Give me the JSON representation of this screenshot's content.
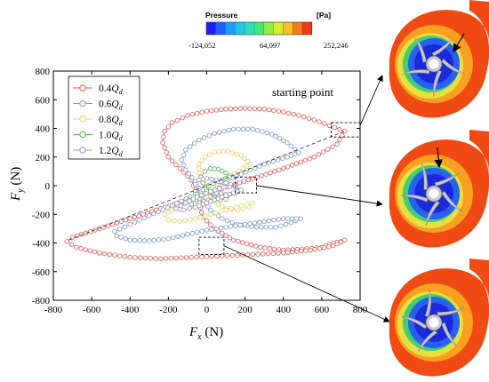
{
  "chart_data": {
    "type": "scatter",
    "title": "",
    "xlabel_main": "F",
    "xlabel_sub": "x",
    "xlabel_unit": " (N)",
    "ylabel_main": "F",
    "ylabel_sub": "y",
    "ylabel_unit": " (N)",
    "xlim": [
      -800,
      800
    ],
    "ylim": [
      -800,
      800
    ],
    "xticks": [
      -800,
      -600,
      -400,
      -200,
      0,
      200,
      400,
      600,
      800
    ],
    "yticks": [
      -800,
      -600,
      -400,
      -200,
      0,
      200,
      400,
      600,
      800
    ],
    "grid": false,
    "legend_position": "top-left",
    "series": [
      {
        "name": "0.4",
        "unit": "Q",
        "sub": "d",
        "color": "#e05a5a",
        "points": [
          [
            720,
            380
          ],
          [
            640,
            420
          ],
          [
            560,
            460
          ],
          [
            480,
            490
          ],
          [
            400,
            515
          ],
          [
            300,
            535
          ],
          [
            200,
            540
          ],
          [
            100,
            535
          ],
          [
            0,
            520
          ],
          [
            -100,
            490
          ],
          [
            -180,
            440
          ],
          [
            -220,
            380
          ],
          [
            -230,
            300
          ],
          [
            -200,
            200
          ],
          [
            -140,
            120
          ],
          [
            -80,
            40
          ],
          [
            -60,
            -40
          ],
          [
            -40,
            -120
          ],
          [
            -20,
            -220
          ],
          [
            40,
            -300
          ],
          [
            140,
            -380
          ],
          [
            280,
            -430
          ],
          [
            400,
            -450
          ],
          [
            520,
            -440
          ],
          [
            600,
            -430
          ],
          [
            660,
            -400
          ],
          [
            700,
            -390
          ],
          [
            720,
            -380
          ],
          [
            660,
            -420
          ],
          [
            540,
            -450
          ],
          [
            400,
            -470
          ],
          [
            240,
            -480
          ],
          [
            80,
            -490
          ],
          [
            -80,
            -500
          ],
          [
            -240,
            -510
          ],
          [
            -400,
            -500
          ],
          [
            -560,
            -470
          ],
          [
            -680,
            -430
          ],
          [
            -730,
            -390
          ],
          [
            -700,
            -360
          ],
          [
            -560,
            -300
          ],
          [
            -400,
            -230
          ],
          [
            -240,
            -160
          ],
          [
            -80,
            -90
          ],
          [
            80,
            -20
          ],
          [
            240,
            50
          ],
          [
            400,
            120
          ],
          [
            560,
            200
          ],
          [
            680,
            290
          ],
          [
            720,
            380
          ]
        ]
      },
      {
        "name": "0.6",
        "unit": "Q",
        "sub": "d",
        "color": "#7d9ccc",
        "points": [
          [
            480,
            230
          ],
          [
            420,
            300
          ],
          [
            340,
            360
          ],
          [
            240,
            395
          ],
          [
            140,
            395
          ],
          [
            40,
            365
          ],
          [
            -40,
            320
          ],
          [
            -110,
            250
          ],
          [
            -130,
            180
          ],
          [
            -110,
            110
          ],
          [
            -60,
            30
          ],
          [
            -40,
            -40
          ],
          [
            -20,
            -100
          ],
          [
            20,
            -170
          ],
          [
            80,
            -230
          ],
          [
            160,
            -270
          ],
          [
            260,
            -290
          ],
          [
            360,
            -290
          ],
          [
            440,
            -260
          ],
          [
            490,
            -230
          ],
          [
            400,
            -230
          ],
          [
            300,
            -250
          ],
          [
            200,
            -270
          ],
          [
            100,
            -290
          ],
          [
            0,
            -310
          ],
          [
            -100,
            -340
          ],
          [
            -200,
            -370
          ],
          [
            -300,
            -385
          ],
          [
            -400,
            -380
          ],
          [
            -470,
            -350
          ],
          [
            -480,
            -320
          ],
          [
            -400,
            -270
          ],
          [
            -300,
            -210
          ],
          [
            -180,
            -140
          ],
          [
            -60,
            -60
          ],
          [
            60,
            10
          ],
          [
            180,
            80
          ],
          [
            300,
            150
          ],
          [
            420,
            200
          ],
          [
            480,
            230
          ]
        ]
      },
      {
        "name": "0.8",
        "unit": "Q",
        "sub": "d",
        "color": "#e8d070",
        "points": [
          [
            230,
            150
          ],
          [
            180,
            210
          ],
          [
            110,
            240
          ],
          [
            40,
            235
          ],
          [
            -10,
            200
          ],
          [
            -40,
            150
          ],
          [
            -40,
            90
          ],
          [
            -20,
            40
          ],
          [
            0,
            -20
          ],
          [
            20,
            -80
          ],
          [
            60,
            -130
          ],
          [
            100,
            -160
          ],
          [
            160,
            -170
          ],
          [
            220,
            -150
          ],
          [
            240,
            -120
          ],
          [
            180,
            -140
          ],
          [
            100,
            -170
          ],
          [
            20,
            -200
          ],
          [
            -60,
            -230
          ],
          [
            -140,
            -250
          ],
          [
            -200,
            -240
          ],
          [
            -220,
            -200
          ],
          [
            -160,
            -160
          ],
          [
            -90,
            -110
          ],
          [
            -20,
            -50
          ],
          [
            50,
            10
          ],
          [
            120,
            70
          ],
          [
            190,
            120
          ],
          [
            230,
            150
          ]
        ]
      },
      {
        "name": "1.0",
        "unit": "Q",
        "sub": "d",
        "color": "#55b555",
        "points": [
          [
            120,
            60
          ],
          [
            100,
            90
          ],
          [
            60,
            115
          ],
          [
            20,
            120
          ],
          [
            -10,
            100
          ],
          [
            -30,
            60
          ],
          [
            -20,
            20
          ],
          [
            0,
            -10
          ],
          [
            20,
            -50
          ],
          [
            40,
            -80
          ],
          [
            70,
            -100
          ],
          [
            100,
            -95
          ],
          [
            110,
            -70
          ],
          [
            60,
            -80
          ],
          [
            10,
            -100
          ],
          [
            -40,
            -120
          ],
          [
            -80,
            -130
          ],
          [
            -100,
            -110
          ],
          [
            -70,
            -80
          ],
          [
            -30,
            -40
          ],
          [
            10,
            0
          ],
          [
            60,
            30
          ],
          [
            120,
            60
          ]
        ]
      },
      {
        "name": "1.2",
        "unit": "Q",
        "sub": "d",
        "color": "#9a92c2",
        "points": [
          [
            180,
            -30
          ],
          [
            150,
            0
          ],
          [
            100,
            20
          ],
          [
            50,
            40
          ],
          [
            0,
            50
          ],
          [
            -40,
            40
          ],
          [
            -60,
            10
          ],
          [
            -40,
            -20
          ],
          [
            0,
            -40
          ],
          [
            50,
            -50
          ],
          [
            100,
            -60
          ],
          [
            150,
            -55
          ],
          [
            180,
            -30
          ],
          [
            120,
            -60
          ],
          [
            60,
            -90
          ],
          [
            0,
            -120
          ],
          [
            -60,
            -150
          ],
          [
            -120,
            -170
          ],
          [
            -160,
            -160
          ],
          [
            -110,
            -120
          ],
          [
            -50,
            -80
          ],
          [
            20,
            -40
          ],
          [
            90,
            -10
          ],
          [
            150,
            -10
          ],
          [
            180,
            -30
          ]
        ]
      }
    ]
  },
  "colorbar": {
    "title": "Pressure",
    "unit": "[Pa]",
    "ticks": [
      "-124,052",
      "64,097",
      "252,246"
    ],
    "colors": [
      "#1e1ef0",
      "#1e60ff",
      "#1e9cff",
      "#20c8e8",
      "#28e0c0",
      "#40e878",
      "#90ee40",
      "#d8ec30",
      "#f8c020",
      "#f87a20",
      "#f03818"
    ]
  },
  "annotation": {
    "text": "starting point",
    "x": 720,
    "y": 380
  },
  "boxes": [
    {
      "x0": 650,
      "x1": 800,
      "y0": 340,
      "y1": 440
    },
    {
      "x0": 150,
      "x1": 260,
      "y0": -50,
      "y1": 60
    },
    {
      "x0": -40,
      "x1": 90,
      "y0": -480,
      "y1": -360
    }
  ],
  "impeller_colors": {
    "outer": "#f04a14",
    "ring1": "#f8a020",
    "ring2": "#e8e040",
    "ring3": "#40d070",
    "core": "#1a2ad8",
    "mid": "#2a60f0",
    "blade": "#c8c8d0",
    "hub": "#ffffff"
  }
}
